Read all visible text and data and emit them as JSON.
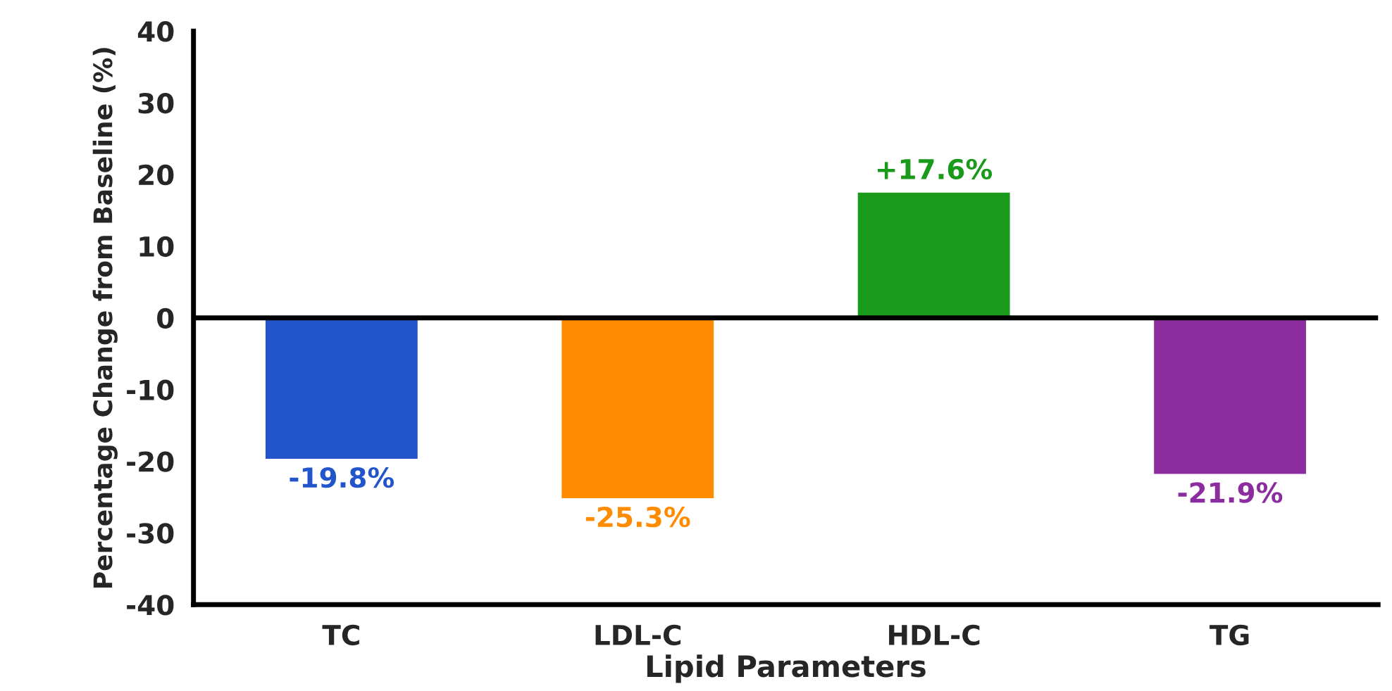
{
  "chart_data": {
    "type": "bar",
    "xlabel": "Lipid Parameters",
    "ylabel": "Percentage Change from Baseline (%)",
    "categories": [
      "TC",
      "LDL-C",
      "HDL-C",
      "TG"
    ],
    "values": [
      -19.8,
      -25.3,
      17.6,
      -21.9
    ],
    "colors": [
      "#2255cc",
      "#ff8c00",
      "#1a9a1a",
      "#8b2d9e"
    ],
    "value_labels": [
      "-19.8%",
      "-25.3%",
      "+17.6%",
      "-21.9%"
    ],
    "ylim": [
      -40,
      40
    ],
    "yticks": [
      -40,
      -30,
      -20,
      -10,
      0,
      10,
      20,
      30,
      40
    ],
    "ref_lines": [
      {
        "axis": "y",
        "value": 0,
        "color": "#000000"
      }
    ],
    "grid": false,
    "legend": false
  }
}
